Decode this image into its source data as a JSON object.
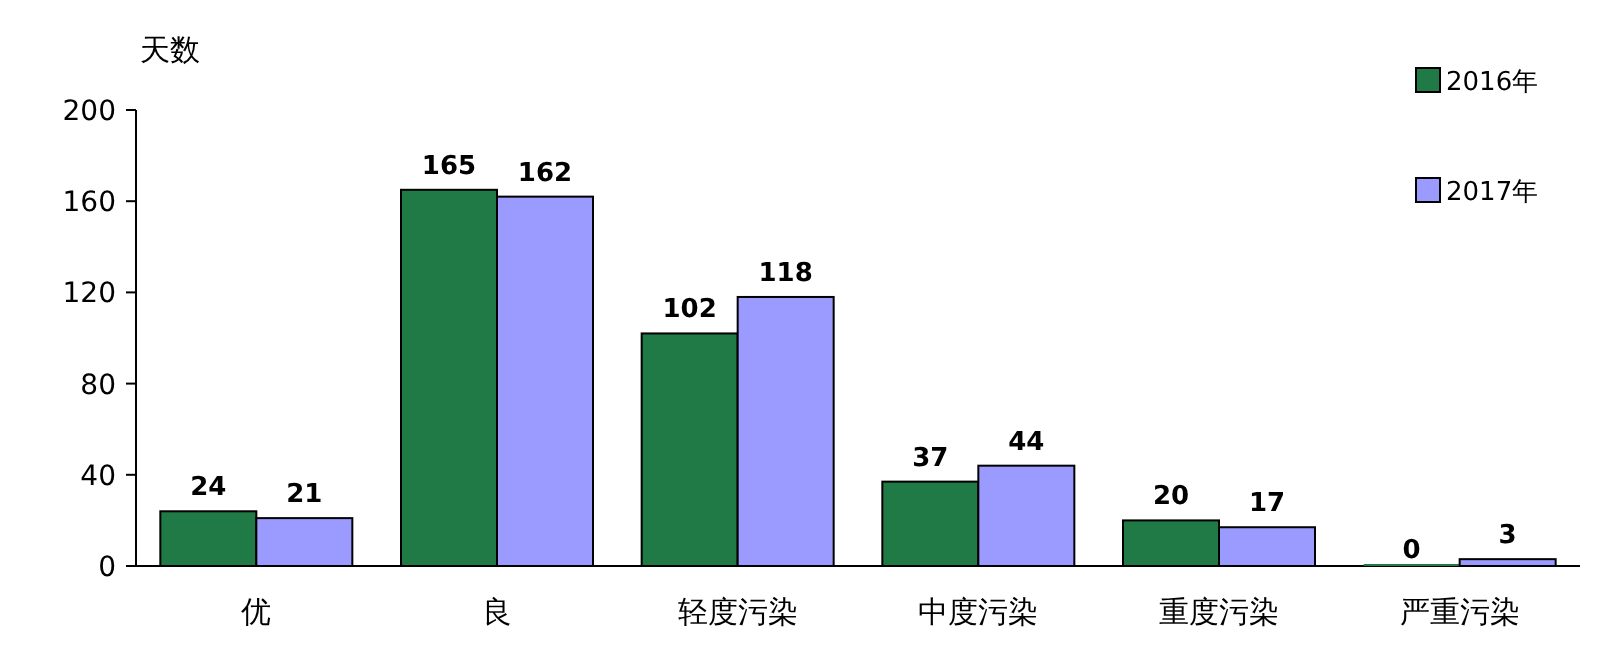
{
  "chart_data": {
    "type": "bar",
    "ylabel": "天数",
    "categories": [
      "优",
      "良",
      "轻度污染",
      "中度污染",
      "重度污染",
      "严重污染"
    ],
    "series": [
      {
        "name": "2016年",
        "color": "#1f7a45",
        "values": [
          24,
          165,
          102,
          37,
          20,
          0
        ]
      },
      {
        "name": "2017年",
        "color": "#9a9aff",
        "values": [
          21,
          162,
          118,
          44,
          17,
          3
        ]
      }
    ],
    "ylim": [
      0,
      200
    ],
    "yticks": [
      0,
      40,
      80,
      120,
      160,
      200
    ],
    "data_labels": true,
    "legend": "top right"
  }
}
